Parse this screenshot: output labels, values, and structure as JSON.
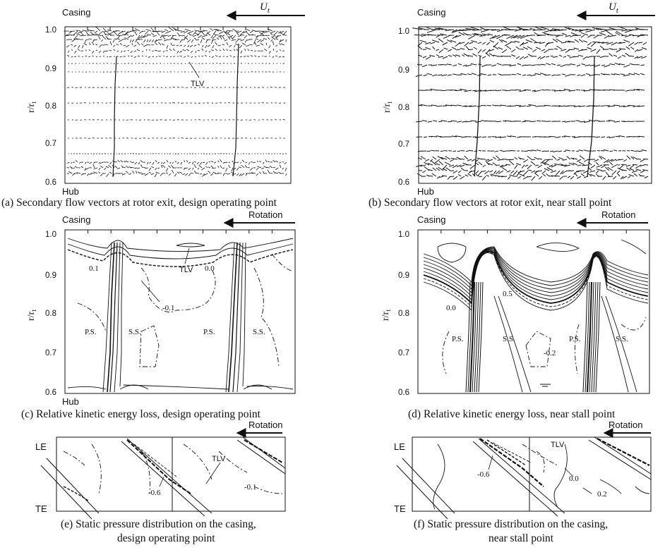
{
  "panels": {
    "a": {
      "casing": "Casing",
      "hub": "Hub",
      "velocity_label": "U",
      "velocity_sub": "t",
      "ylabel": "r/r",
      "ylabel_sub": "t",
      "yticks": [
        "1.0",
        "0.9",
        "0.8",
        "0.7",
        "0.6"
      ],
      "annotations": [
        "TLV"
      ],
      "caption": "(a) Secondary flow vectors at rotor exit, design operating point"
    },
    "b": {
      "casing": "Casing",
      "hub": "Hub",
      "velocity_label": "U",
      "velocity_sub": "t",
      "ylabel": "r/r",
      "ylabel_sub": "t",
      "yticks": [
        "1.0",
        "0.9",
        "0.8",
        "0.7",
        "0.6"
      ],
      "caption": "(b) Secondary flow vectors at rotor exit, near stall point"
    },
    "c": {
      "casing": "Casing",
      "hub": "Hub",
      "rotation": "Rotation",
      "ylabel": "r/r",
      "ylabel_sub": "t",
      "yticks": [
        "1.0",
        "0.9",
        "0.8",
        "0.7",
        "0.6"
      ],
      "annotations": [
        "0.1",
        "TLV",
        "0.0",
        "-0.1",
        "P.S.",
        "S.S.",
        "P.S.",
        "S.S."
      ],
      "caption": "(c) Relative kinetic energy loss, design operating point"
    },
    "d": {
      "casing": "Casing",
      "rotation": "Rotation",
      "ylabel": "r/r",
      "ylabel_sub": "t",
      "yticks": [
        "1.0",
        "0.9",
        "0.8",
        "0.7",
        "0.6"
      ],
      "annotations": [
        "0.5",
        "0.0",
        "P.S.",
        "S.S.",
        "-0.2",
        "P.S.",
        "S.S."
      ],
      "caption": "(d) Relative kinetic energy loss, near stall point"
    },
    "e": {
      "rotation": "Rotation",
      "le": "LE",
      "te": "TE",
      "annotations": [
        "TLV",
        "-0.6",
        "-0.1"
      ],
      "caption_line1": "(e) Static pressure distribution on the casing,",
      "caption_line2": "design operating point"
    },
    "f": {
      "rotation": "Rotation",
      "le": "LE",
      "te": "TE",
      "annotations": [
        "TLV",
        "-0.6",
        "0.0",
        "0.2"
      ],
      "caption_line1": "(f) Static pressure distribution on the casing,",
      "caption_line2": "near stall point"
    }
  },
  "colors": {
    "ink": "#111111",
    "background": "#ffffff"
  }
}
